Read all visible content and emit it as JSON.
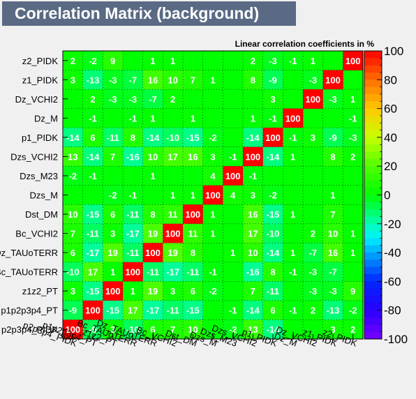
{
  "chart_data": {
    "type": "heatmap",
    "title": "Correlation Matrix (background)",
    "subtitle": "Linear correlation coefficients in %",
    "x_labels": [
      "p2p3p4_PIDK",
      "p1p2p3p4_PT",
      "z1z2_PT",
      "Bc_TAUoTERR",
      "Dz_TAUoTERR",
      "Bc_VCHI2",
      "Dst_DM",
      "Dzs_M",
      "Dzs_M23",
      "Dzs_VCHI2",
      "p1_PIDK",
      "Dz_M",
      "Dz_VCHI2",
      "z1_PIDK",
      "z2_PIDK"
    ],
    "y_labels": [
      "z2_PIDK",
      "z1_PIDK",
      "Dz_VCHI2",
      "Dz_M",
      "p1_PIDK",
      "Dzs_VCHI2",
      "Dzs_M23",
      "Dzs_M",
      "Dst_DM",
      "Bc_VCHI2",
      "Dz_TAUoTERR",
      "Bc_TAUoTERR",
      "z1z2_PT",
      "p1p2p3p4_PT",
      "p2p3p4_PIDK"
    ],
    "values": [
      [
        2,
        -2,
        9,
        null,
        1,
        1,
        null,
        null,
        null,
        2,
        -3,
        -1,
        1,
        null,
        100
      ],
      [
        3,
        -13,
        -3,
        -7,
        16,
        10,
        7,
        1,
        null,
        8,
        -9,
        null,
        -3,
        100,
        null
      ],
      [
        null,
        2,
        -3,
        -3,
        -7,
        2,
        null,
        null,
        null,
        null,
        3,
        null,
        100,
        -3,
        1
      ],
      [
        null,
        -1,
        null,
        -1,
        1,
        null,
        1,
        null,
        null,
        1,
        -1,
        100,
        null,
        null,
        -1
      ],
      [
        -14,
        6,
        -11,
        8,
        -14,
        -10,
        -15,
        -2,
        null,
        -14,
        100,
        -1,
        3,
        -9,
        -3
      ],
      [
        13,
        -14,
        7,
        -16,
        10,
        17,
        16,
        3,
        -1,
        100,
        -14,
        1,
        null,
        8,
        2
      ],
      [
        -2,
        -1,
        null,
        null,
        1,
        null,
        null,
        4,
        100,
        -1,
        null,
        null,
        null,
        null,
        null
      ],
      [
        null,
        null,
        -2,
        -1,
        null,
        1,
        1,
        100,
        4,
        3,
        -2,
        null,
        null,
        1,
        null
      ],
      [
        10,
        -15,
        6,
        -11,
        8,
        11,
        100,
        1,
        null,
        16,
        -15,
        1,
        null,
        7,
        null
      ],
      [
        7,
        -11,
        3,
        -17,
        19,
        100,
        11,
        1,
        null,
        17,
        -10,
        null,
        2,
        10,
        1
      ],
      [
        6,
        -17,
        19,
        -11,
        100,
        19,
        8,
        null,
        1,
        10,
        -14,
        1,
        -7,
        16,
        1
      ],
      [
        -10,
        17,
        1,
        100,
        -11,
        -17,
        -11,
        -1,
        null,
        -16,
        8,
        -1,
        -3,
        -7,
        null
      ],
      [
        3,
        -15,
        100,
        1,
        19,
        3,
        6,
        -2,
        null,
        7,
        -11,
        null,
        -3,
        -3,
        9
      ],
      [
        -9,
        100,
        -15,
        17,
        -17,
        -11,
        -15,
        null,
        -1,
        -14,
        6,
        -1,
        2,
        -13,
        -2
      ],
      [
        100,
        -9,
        3,
        -10,
        6,
        7,
        10,
        null,
        -2,
        13,
        -14,
        null,
        null,
        3,
        2
      ]
    ],
    "zlim": [
      -100,
      100
    ],
    "z_ticks": [
      100,
      80,
      60,
      40,
      20,
      0,
      -20,
      -40,
      -60,
      -80,
      -100
    ],
    "grid": true,
    "legend": "right"
  }
}
